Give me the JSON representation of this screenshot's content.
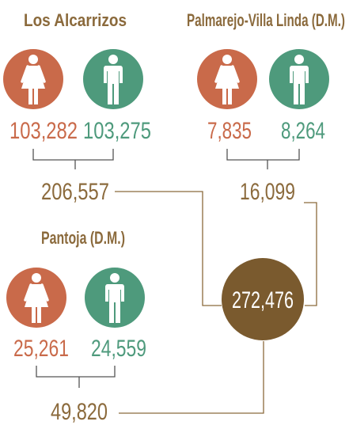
{
  "regions": [
    {
      "name": "Los Alcarrizos",
      "female": "103,282",
      "male": "103,275",
      "total": "206,557"
    },
    {
      "name": "Palmarejo-Villa Linda (D.M.)",
      "female": "7,835",
      "male": "8,264",
      "total": "16,099"
    },
    {
      "name": "Pantoja (D.M.)",
      "female": "25,261",
      "male": "24,559",
      "total": "49,820"
    }
  ],
  "grand_total": "272,476"
}
